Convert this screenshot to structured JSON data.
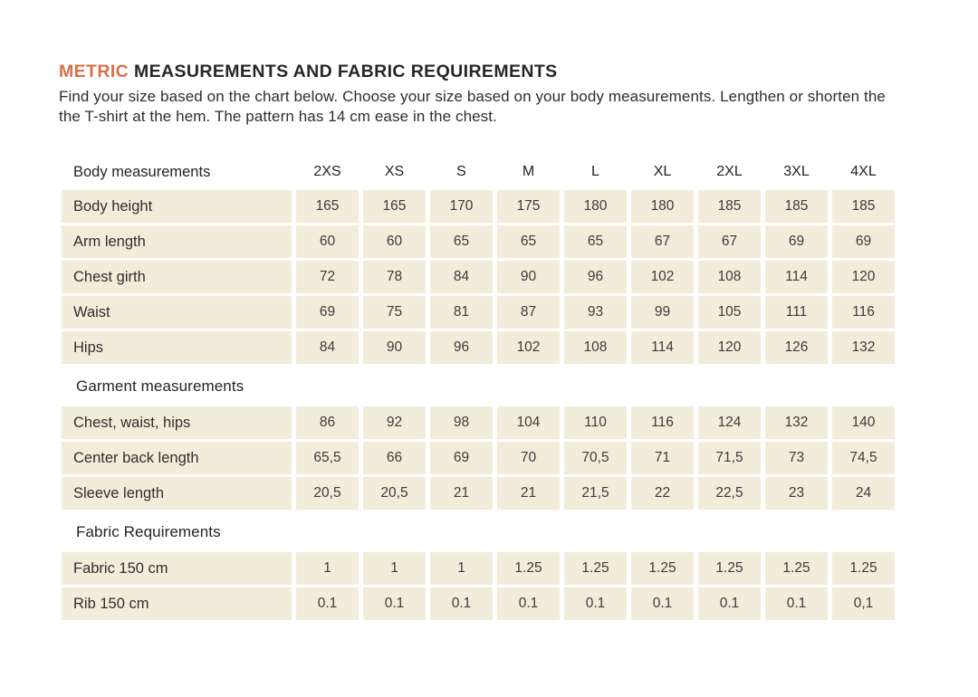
{
  "header": {
    "title_highlight": "METRIC",
    "title_rest": " MEASUREMENTS AND FABRIC REQUIREMENTS",
    "intro_line1": "Find your size based on the chart below. Choose your size based on your body measurements. Lengthen or shorten the",
    "intro_line2": "the T-shirt at the hem. The pattern has 14 cm ease in the chest."
  },
  "colors": {
    "accent": "#d8714a",
    "cell_bg": "#f2ecda",
    "text": "#2b2b2b"
  },
  "chart_data": {
    "type": "table",
    "size_columns": [
      "2XS",
      "XS",
      "S",
      "M",
      "L",
      "XL",
      "2XL",
      "3XL",
      "4XL"
    ],
    "sections": [
      {
        "title": "Body measurements",
        "rows": [
          {
            "label": "Body height",
            "values": [
              "165",
              "165",
              "170",
              "175",
              "180",
              "180",
              "185",
              "185",
              "185"
            ]
          },
          {
            "label": "Arm length",
            "values": [
              "60",
              "60",
              "65",
              "65",
              "65",
              "67",
              "67",
              "69",
              "69"
            ]
          },
          {
            "label": "Chest girth",
            "values": [
              "72",
              "78",
              "84",
              "90",
              "96",
              "102",
              "108",
              "114",
              "120"
            ]
          },
          {
            "label": "Waist",
            "values": [
              "69",
              "75",
              "81",
              "87",
              "93",
              "99",
              "105",
              "111",
              "116"
            ]
          },
          {
            "label": "Hips",
            "values": [
              "84",
              "90",
              "96",
              "102",
              "108",
              "114",
              "120",
              "126",
              "132"
            ]
          }
        ]
      },
      {
        "title": "Garment measurements",
        "rows": [
          {
            "label": "Chest, waist, hips",
            "values": [
              "86",
              "92",
              "98",
              "104",
              "110",
              "116",
              "124",
              "132",
              "140"
            ]
          },
          {
            "label": "Center back length",
            "values": [
              "65,5",
              "66",
              "69",
              "70",
              "70,5",
              "71",
              "71,5",
              "73",
              "74,5"
            ]
          },
          {
            "label": "Sleeve length",
            "values": [
              "20,5",
              "20,5",
              "21",
              "21",
              "21,5",
              "22",
              "22,5",
              "23",
              "24"
            ]
          }
        ]
      },
      {
        "title": "Fabric Requirements",
        "rows": [
          {
            "label": "Fabric 150 cm",
            "values": [
              "1",
              "1",
              "1",
              "1.25",
              "1.25",
              "1.25",
              "1.25",
              "1.25",
              "1.25"
            ]
          },
          {
            "label": "Rib 150 cm",
            "values": [
              "0.1",
              "0.1",
              "0.1",
              "0.1",
              "0.1",
              "0.1",
              "0.1",
              "0.1",
              "0,1"
            ]
          }
        ]
      }
    ]
  }
}
